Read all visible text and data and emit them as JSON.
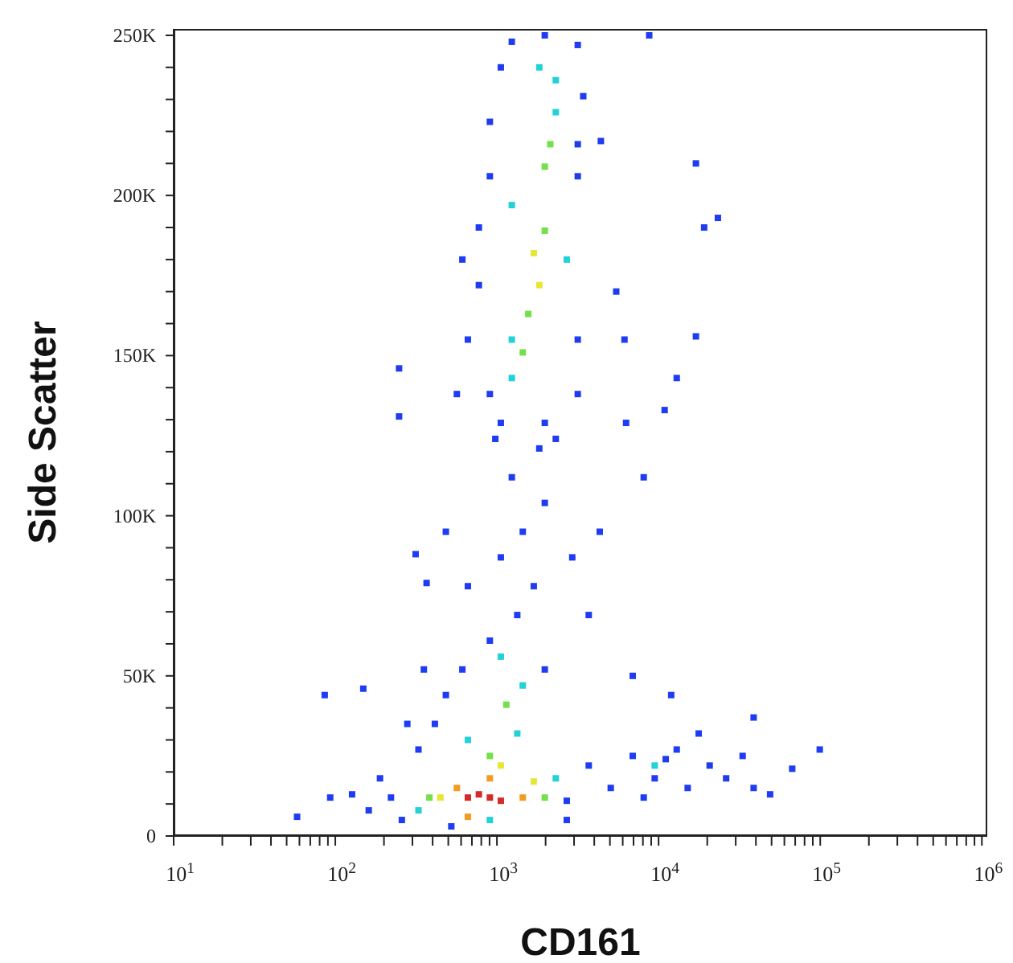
{
  "chart_data": {
    "type": "scatter",
    "xlabel": "CD161",
    "ylabel": "Side Scatter",
    "log": "x",
    "grid": false,
    "marker": "square",
    "xlim": [
      10,
      1080000
    ],
    "xticks": [
      {
        "value": 10,
        "label": "10$^{1}$"
      },
      {
        "value": 20,
        "label": null
      },
      {
        "value": 30,
        "label": null
      },
      {
        "value": 40,
        "label": null
      },
      {
        "value": 50,
        "label": null
      },
      {
        "value": 60,
        "label": null
      },
      {
        "value": 70,
        "label": null
      },
      {
        "value": 80,
        "label": null
      },
      {
        "value": 90,
        "label": null
      },
      {
        "value": 100,
        "label": "10$^{2}$"
      },
      {
        "value": 200,
        "label": null
      },
      {
        "value": 300,
        "label": null
      },
      {
        "value": 400,
        "label": null
      },
      {
        "value": 500,
        "label": null
      },
      {
        "value": 600,
        "label": null
      },
      {
        "value": 700,
        "label": null
      },
      {
        "value": 800,
        "label": null
      },
      {
        "value": 900,
        "label": null
      },
      {
        "value": 1000,
        "label": "10$^{3}$"
      },
      {
        "value": 2000,
        "label": null
      },
      {
        "value": 3000,
        "label": null
      },
      {
        "value": 4000,
        "label": null
      },
      {
        "value": 5000,
        "label": null
      },
      {
        "value": 6000,
        "label": null
      },
      {
        "value": 7000,
        "label": null
      },
      {
        "value": 8000,
        "label": null
      },
      {
        "value": 9000,
        "label": null
      },
      {
        "value": 10000,
        "label": "10$^{4}$"
      },
      {
        "value": 20000,
        "label": null
      },
      {
        "value": 30000,
        "label": null
      },
      {
        "value": 40000,
        "label": null
      },
      {
        "value": 50000,
        "label": null
      },
      {
        "value": 60000,
        "label": null
      },
      {
        "value": 70000,
        "label": null
      },
      {
        "value": 80000,
        "label": null
      },
      {
        "value": 90000,
        "label": null
      },
      {
        "value": 100000,
        "label": "10$^{5}$"
      },
      {
        "value": 200000,
        "label": null
      },
      {
        "value": 300000,
        "label": null
      },
      {
        "value": 400000,
        "label": null
      },
      {
        "value": 500000,
        "label": null
      },
      {
        "value": 600000,
        "label": null
      },
      {
        "value": 700000,
        "label": null
      },
      {
        "value": 800000,
        "label": null
      },
      {
        "value": 900000,
        "label": null
      },
      {
        "value": 1000000,
        "label": "10$^{6}$"
      }
    ],
    "ylim": [
      0,
      252000
    ],
    "yticks": [
      0,
      {
        "value": 10000,
        "label": null
      },
      {
        "value": 20000,
        "label": null
      },
      {
        "value": 30000,
        "label": null
      },
      {
        "value": 40000,
        "label": null
      },
      {
        "value": 50000,
        "label": "50K"
      },
      {
        "value": 60000,
        "label": null
      },
      {
        "value": 70000,
        "label": null
      },
      {
        "value": 80000,
        "label": null
      },
      {
        "value": 90000,
        "label": null
      },
      {
        "value": 100000,
        "label": "100K"
      },
      {
        "value": 110000,
        "label": null
      },
      {
        "value": 120000,
        "label": null
      },
      {
        "value": 130000,
        "label": null
      },
      {
        "value": 140000,
        "label": null
      },
      {
        "value": 150000,
        "label": "150K"
      },
      {
        "value": 160000,
        "label": null
      },
      {
        "value": 170000,
        "label": null
      },
      {
        "value": 180000,
        "label": null
      },
      {
        "value": 190000,
        "label": null
      },
      {
        "value": 200000,
        "label": "200K"
      },
      {
        "value": 210000,
        "label": null
      },
      {
        "value": 220000,
        "label": null
      },
      {
        "value": 230000,
        "label": null
      },
      {
        "value": 240000,
        "label": null
      },
      {
        "value": 250000,
        "label": "250K"
      }
    ],
    "series": [
      {
        "color": "#1f3cf0",
        "x": [
          221,
          161,
          127,
          258,
          189,
          327,
          413,
          483,
          353,
          279,
          93,
          58,
          86,
          149,
          2704,
          2704,
          522,
          3698,
          5058,
          6918,
          9463,
          12950,
          17700,
          20700,
          26180,
          33110,
          38730,
          48970,
          67100,
          99300,
          8091,
          15140,
          11070,
          38730,
          904,
          1336,
          1690,
          1057,
          1445,
          1977,
          1236,
          1828,
          977,
          2312,
          661,
          2924,
          611,
          1977,
          3698,
          483,
          4325,
          904,
          3162,
          773,
          3162,
          904,
          3420,
          1057,
          3162,
          1236,
          1977,
          773,
          661,
          565,
          3162,
          1977,
          1057,
          611,
          904,
          3162,
          17020,
          19140,
          23280,
          17020,
          12950,
          10900,
          8091,
          5470,
          6152,
          6295,
          6918,
          11970,
          248,
          248,
          314,
          367,
          8750,
          4395
        ],
        "values": [
          12000,
          8000,
          13000,
          5000,
          18000,
          27000,
          35000,
          44000,
          52000,
          35000,
          12000,
          6000,
          44000,
          46000,
          11000,
          5000,
          3000,
          22000,
          15000,
          25000,
          18000,
          27000,
          32000,
          22000,
          18000,
          25000,
          15000,
          13000,
          21000,
          27000,
          12000,
          15000,
          24000,
          37000,
          61000,
          69000,
          78000,
          87000,
          95000,
          104000,
          112000,
          121000,
          124000,
          124000,
          78000,
          87000,
          52000,
          52000,
          69000,
          95000,
          95000,
          138000,
          155000,
          172000,
          206000,
          206000,
          231000,
          240000,
          247000,
          248000,
          250000,
          190000,
          155000,
          138000,
          138000,
          129000,
          129000,
          180000,
          223000,
          216000,
          210000,
          190000,
          193000,
          156000,
          143000,
          133000,
          112000,
          170000,
          155000,
          129000,
          50000,
          44000,
          146000,
          131000,
          88000,
          79000,
          250000,
          217000
        ]
      },
      {
        "color": "#22d2d6",
        "x": [
          327,
          2312,
          661,
          1336,
          904,
          1057,
          1445,
          9463,
          1236,
          2312,
          2312,
          1236,
          2704,
          1236,
          1828
        ],
        "values": [
          8000,
          18000,
          30000,
          32000,
          5000,
          56000,
          47000,
          22000,
          143000,
          226000,
          236000,
          197000,
          180000,
          155000,
          240000
        ]
      },
      {
        "color": "#74e04a",
        "x": [
          382,
          1977,
          904,
          1143,
          1977,
          1563,
          1977,
          2138,
          1445
        ],
        "values": [
          12000,
          12000,
          25000,
          41000,
          189000,
          163000,
          209000,
          216000,
          151000
        ]
      },
      {
        "color": "#e6e635",
        "x": [
          447,
          1690,
          1057,
          1828,
          1690
        ],
        "values": [
          12000,
          17000,
          22000,
          172000,
          182000
        ]
      },
      {
        "color": "#f39c1f",
        "x": [
          565,
          1445,
          904,
          661
        ],
        "values": [
          15000,
          12000,
          18000,
          6000
        ]
      },
      {
        "color": "#d42a2a",
        "x": [
          904,
          773,
          1057,
          661
        ],
        "values": [
          12000,
          13000,
          11000,
          12000
        ]
      }
    ]
  }
}
